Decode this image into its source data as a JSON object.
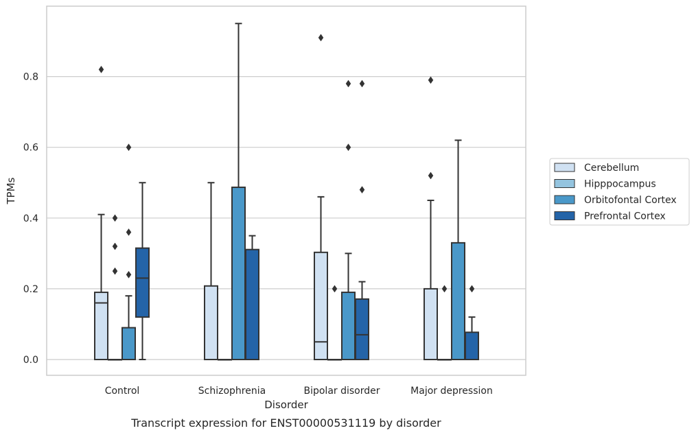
{
  "chart_data": {
    "type": "box",
    "caption": "Transcript expression for ENST00000531119 by disorder",
    "xlabel": "Disorder",
    "ylabel": "TPMs",
    "ylim": [
      -0.045,
      0.99
    ],
    "yticks": [
      0.0,
      0.2,
      0.4,
      0.6,
      0.8
    ],
    "ytick_labels": [
      "0.0",
      "0.2",
      "0.4",
      "0.6",
      "0.8"
    ],
    "grid": "horizontal",
    "legend_position": "right",
    "categories": [
      "Control",
      "Schizophrenia",
      "Bipolar disorder",
      "Major depression"
    ],
    "series": [
      {
        "name": "Cerebellum",
        "color": "#d0e1f2",
        "boxes": [
          {
            "q1": 0.0,
            "median": 0.16,
            "q3": 0.19,
            "whisker_low": 0.0,
            "whisker_high": 0.41,
            "outliers": [
              0.82
            ]
          },
          {
            "q1": 0.0,
            "median": 0.0,
            "q3": 0.208,
            "whisker_low": 0.0,
            "whisker_high": 0.5,
            "outliers": []
          },
          {
            "q1": 0.0,
            "median": 0.05,
            "q3": 0.303,
            "whisker_low": 0.0,
            "whisker_high": 0.46,
            "outliers": [
              0.91
            ]
          },
          {
            "q1": 0.0,
            "median": 0.0,
            "q3": 0.2,
            "whisker_low": 0.0,
            "whisker_high": 0.45,
            "outliers": [
              0.52,
              0.79
            ]
          }
        ]
      },
      {
        "name": "Hipppocampus",
        "color": "#94c4df",
        "boxes": [
          {
            "q1": 0.0,
            "median": 0.0,
            "q3": 0.0,
            "whisker_low": 0.0,
            "whisker_high": 0.0,
            "outliers": [
              0.25,
              0.32,
              0.4
            ]
          },
          {
            "q1": 0.0,
            "median": 0.0,
            "q3": 0.0,
            "whisker_low": 0.0,
            "whisker_high": 0.0,
            "outliers": []
          },
          {
            "q1": 0.0,
            "median": 0.0,
            "q3": 0.0,
            "whisker_low": 0.0,
            "whisker_high": 0.0,
            "outliers": [
              0.2
            ]
          },
          {
            "q1": 0.0,
            "median": 0.0,
            "q3": 0.0,
            "whisker_low": 0.0,
            "whisker_high": 0.0,
            "outliers": [
              0.2
            ]
          }
        ]
      },
      {
        "name": "Orbitofontal Cortex",
        "color": "#4a98c9",
        "boxes": [
          {
            "q1": 0.0,
            "median": 0.0,
            "q3": 0.09,
            "whisker_low": 0.0,
            "whisker_high": 0.18,
            "outliers": [
              0.24,
              0.36,
              0.6
            ]
          },
          {
            "q1": 0.0,
            "median": 0.0,
            "q3": 0.487,
            "whisker_low": 0.0,
            "whisker_high": 0.95,
            "outliers": []
          },
          {
            "q1": 0.0,
            "median": 0.0,
            "q3": 0.19,
            "whisker_low": 0.0,
            "whisker_high": 0.3,
            "outliers": [
              0.6,
              0.78
            ]
          },
          {
            "q1": 0.0,
            "median": 0.0,
            "q3": 0.33,
            "whisker_low": 0.0,
            "whisker_high": 0.62,
            "outliers": []
          }
        ]
      },
      {
        "name": "Prefrontal Cortex",
        "color": "#2464a8",
        "boxes": [
          {
            "q1": 0.12,
            "median": 0.23,
            "q3": 0.315,
            "whisker_low": 0.0,
            "whisker_high": 0.5,
            "outliers": []
          },
          {
            "q1": 0.0,
            "median": 0.0,
            "q3": 0.311,
            "whisker_low": 0.0,
            "whisker_high": 0.35,
            "outliers": []
          },
          {
            "q1": 0.0,
            "median": 0.07,
            "q3": 0.171,
            "whisker_low": 0.0,
            "whisker_high": 0.22,
            "outliers": [
              0.48,
              0.78
            ]
          },
          {
            "q1": 0.0,
            "median": 0.0,
            "q3": 0.077,
            "whisker_low": 0.0,
            "whisker_high": 0.12,
            "outliers": [
              0.2
            ]
          }
        ]
      }
    ]
  }
}
